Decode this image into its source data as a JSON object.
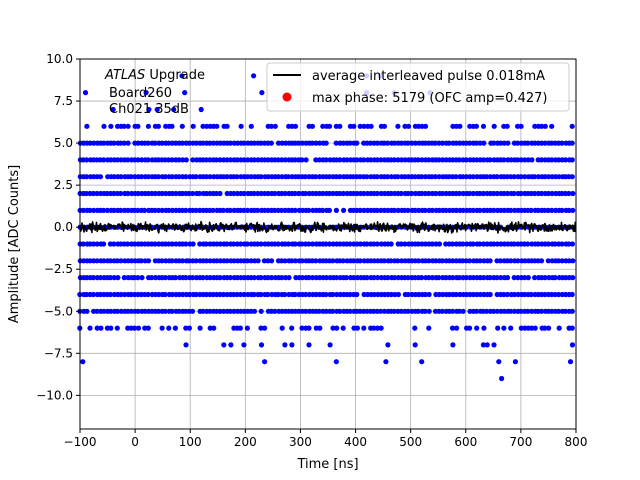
{
  "chart_data": {
    "type": "scatter",
    "xlabel": "Time [ns]",
    "ylabel": "Amplitude [ADC Counts]",
    "xlim": [
      -100,
      800
    ],
    "ylim": [
      -12.0,
      10.0
    ],
    "x_ticks": [
      -100,
      0,
      100,
      200,
      300,
      400,
      500,
      600,
      700,
      800
    ],
    "x_tick_labels": [
      "−100",
      "0",
      "100",
      "200",
      "300",
      "400",
      "500",
      "600",
      "700",
      "800"
    ],
    "y_ticks": [
      -10.0,
      -7.5,
      -5.0,
      -2.5,
      0.0,
      2.5,
      5.0,
      7.5,
      10.0
    ],
    "y_tick_labels": [
      "−10.0",
      "−7.5",
      "−5.0",
      "−2.5",
      "0.0",
      "2.5",
      "5.0",
      "7.5",
      "10.0"
    ],
    "grid": true,
    "legend_position": "top-right",
    "annotation": {
      "experiment": "ATLAS",
      "experiment_suffix": " Upgrade",
      "board": "Board260",
      "channel": "Ch021 35dB"
    },
    "series": [
      {
        "name": "average interleaved pulse 0.018mA",
        "kind": "line",
        "color": "#000000",
        "x_range": [
          -100,
          800
        ],
        "approx_level": 0.0,
        "noise_amplitude": 0.35,
        "description_values": "noisy flat baseline around 0 ADC counts"
      },
      {
        "name": "max phase: 5179 (OFC amp=0.427)",
        "kind": "marker",
        "color": "#ff0000",
        "points": []
      },
      {
        "kind": "scatter",
        "color": "#0000ff",
        "x_range": [
          -100,
          800
        ],
        "levels": [
          {
            "y": 9,
            "density": "sparse",
            "x": [
              85,
              215,
              420,
              445
            ]
          },
          {
            "y": 8,
            "density": "sparse",
            "x": [
              -90,
              20,
              90,
              230,
              420,
              470,
              535
            ]
          },
          {
            "y": 7,
            "density": "sparse",
            "x": [
              -40,
              25,
              40,
              70,
              120
            ]
          },
          {
            "y": 6,
            "density": "medium"
          },
          {
            "y": 5,
            "density": "dense"
          },
          {
            "y": 4,
            "density": "dense"
          },
          {
            "y": 3,
            "density": "dense"
          },
          {
            "y": 2,
            "density": "dense"
          },
          {
            "y": 1,
            "density": "dense"
          },
          {
            "y": 0,
            "density": "dense"
          },
          {
            "y": -1,
            "density": "dense"
          },
          {
            "y": -2,
            "density": "dense"
          },
          {
            "y": -3,
            "density": "dense"
          },
          {
            "y": -4,
            "density": "dense"
          },
          {
            "y": -5,
            "density": "dense"
          },
          {
            "y": -6,
            "density": "medium"
          },
          {
            "y": -7,
            "density": "sparse"
          },
          {
            "y": -8,
            "density": "sparse",
            "x": [
              -95,
              235,
              365,
              455,
              520,
              660,
              690,
              790
            ]
          },
          {
            "y": -9,
            "density": "sparse",
            "x": [
              665
            ]
          }
        ]
      }
    ]
  }
}
